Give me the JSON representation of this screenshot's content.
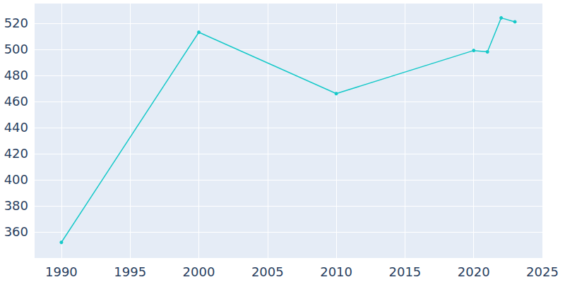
{
  "chart_data": {
    "type": "line",
    "x": [
      1990,
      2000,
      2010,
      2020,
      2021,
      2022,
      2023
    ],
    "values": [
      352,
      513,
      466,
      499,
      498,
      524,
      521
    ],
    "color": "#17c9c9",
    "marker": "circle",
    "xlim": [
      1988,
      2025
    ],
    "xticks": [
      1990,
      1995,
      2000,
      2005,
      2010,
      2015,
      2020,
      2025
    ],
    "ylim": [
      340,
      535
    ],
    "yticks": [
      360,
      380,
      400,
      420,
      440,
      460,
      480,
      500,
      520
    ],
    "grid": true
  }
}
